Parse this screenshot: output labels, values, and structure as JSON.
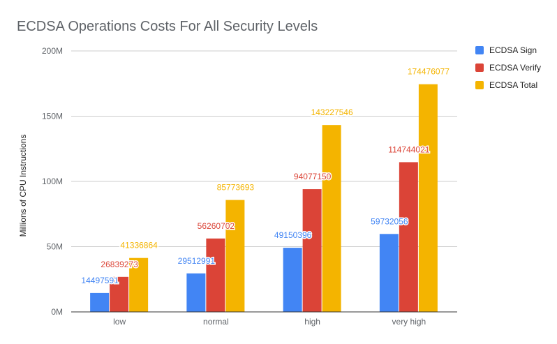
{
  "chart_data": {
    "type": "bar",
    "title": "ECDSA Operations Costs For All Security Levels",
    "xlabel": "",
    "ylabel": "Millions of CPU Instructions",
    "ylim": [
      0,
      200000000
    ],
    "yticks": [
      {
        "value": 0,
        "label": "0M"
      },
      {
        "value": 50000000,
        "label": "50M"
      },
      {
        "value": 100000000,
        "label": "100M"
      },
      {
        "value": 150000000,
        "label": "150M"
      },
      {
        "value": 200000000,
        "label": "200M"
      }
    ],
    "grid": true,
    "legend_position": "right",
    "categories": [
      "low",
      "normal",
      "high",
      "very high"
    ],
    "series": [
      {
        "name": "ECDSA Sign",
        "color": "#4285f4",
        "values": [
          14497591,
          29512991,
          49150396,
          59732056
        ]
      },
      {
        "name": "ECDSA Verify",
        "color": "#db4437",
        "values": [
          26839273,
          56260702,
          94077150,
          114744021
        ]
      },
      {
        "name": "ECDSA Total",
        "color": "#f4b400",
        "values": [
          41336864,
          85773693,
          143227546,
          174476077
        ]
      }
    ]
  }
}
